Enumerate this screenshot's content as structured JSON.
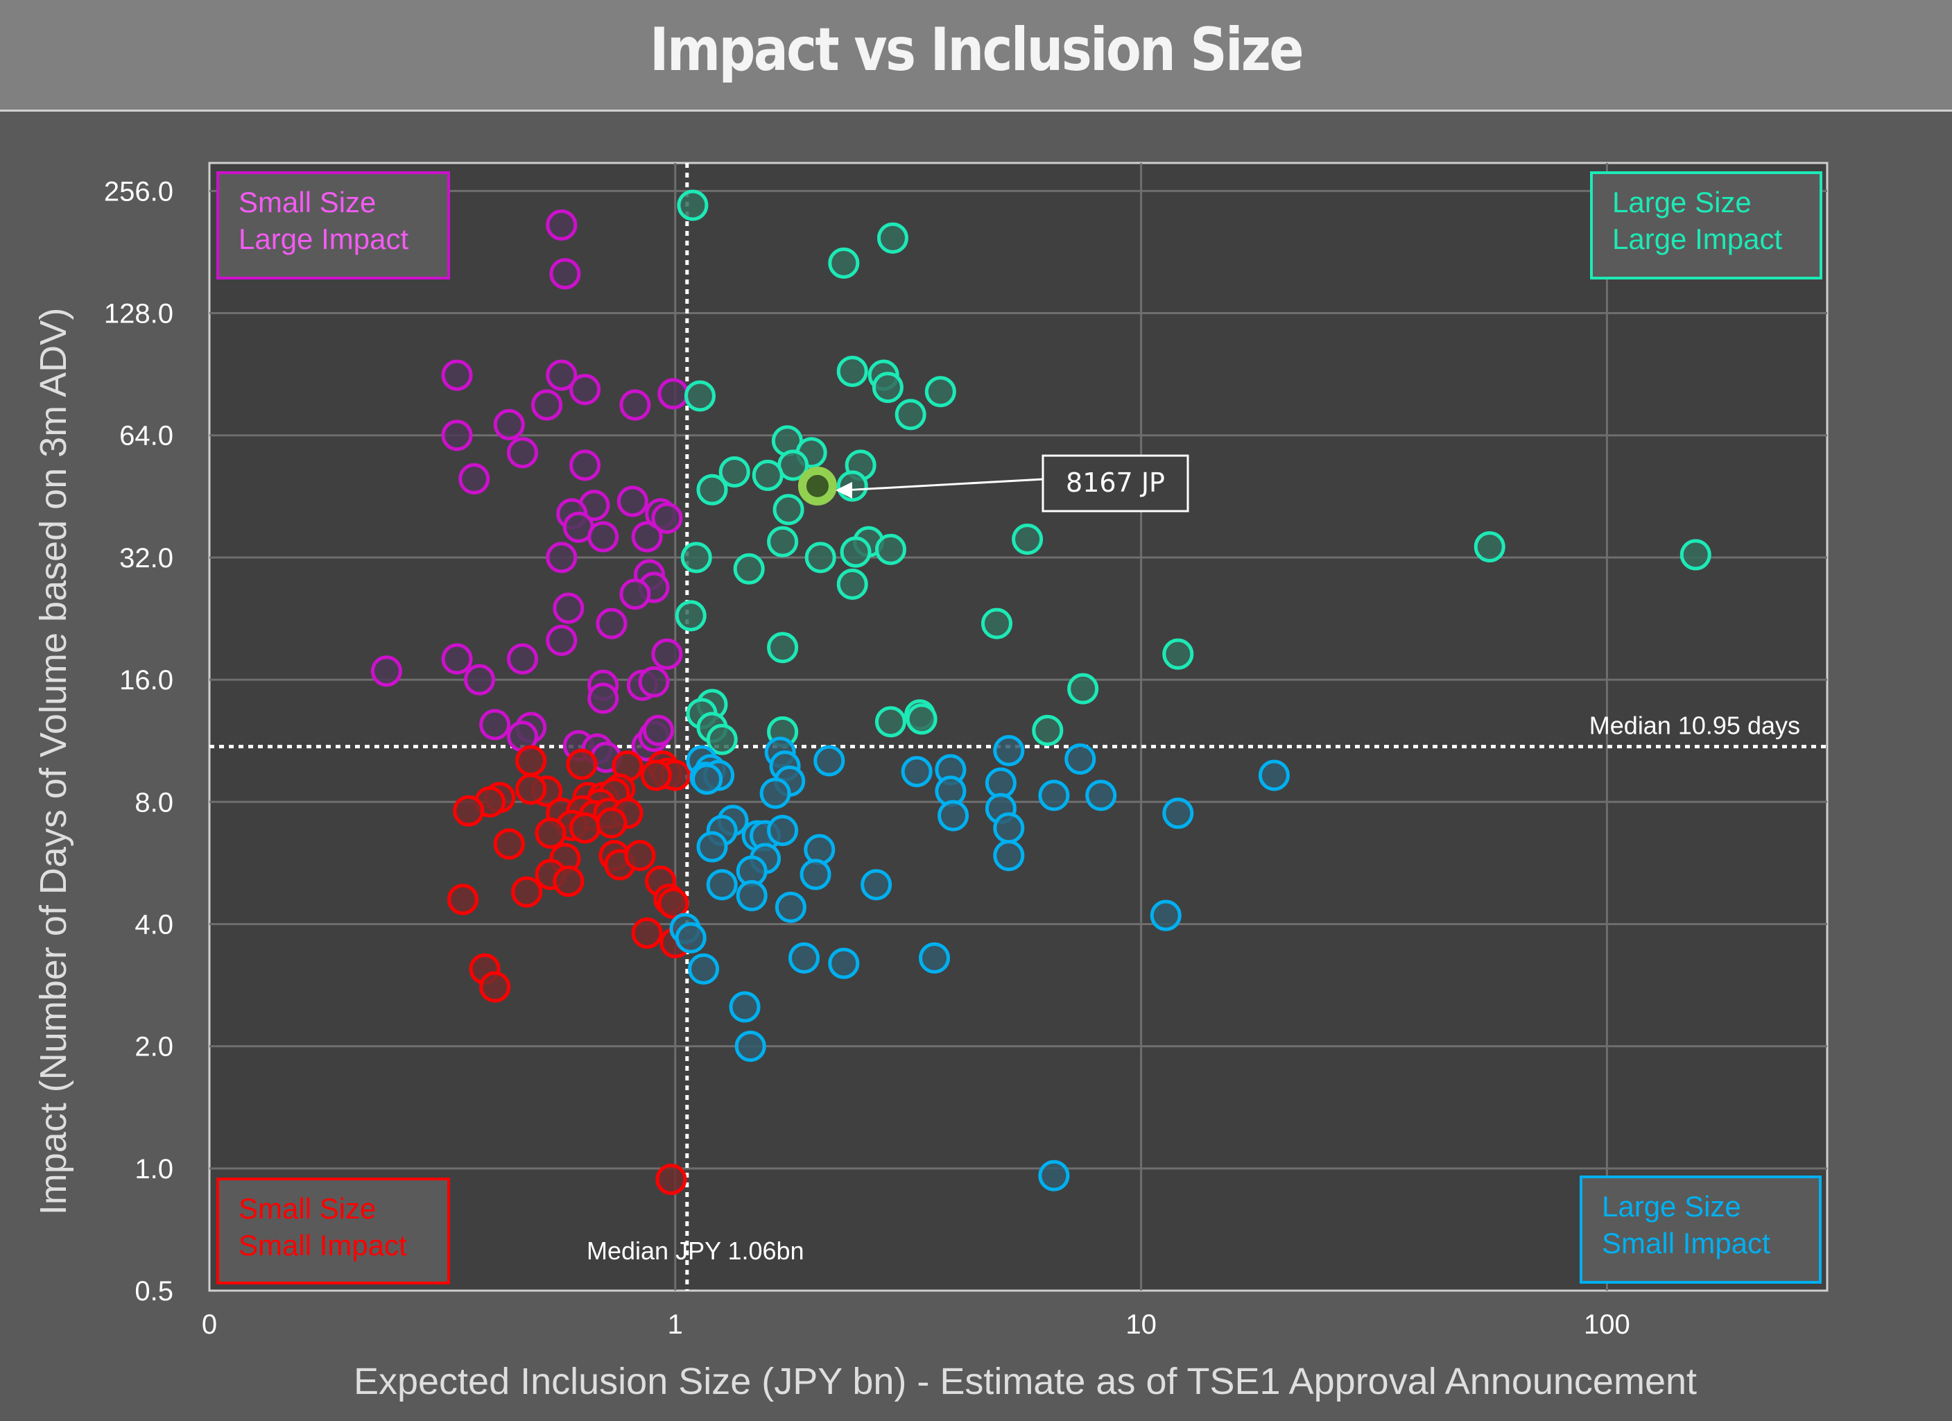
{
  "header": {
    "title": "Impact vs Inclusion Size"
  },
  "chart_data": {
    "type": "scatter",
    "title": "Impact vs Inclusion Size",
    "xlabel": "Expected Inclusion Size (JPY bn) - Estimate as of TSE1 Approval Announcement",
    "ylabel": "Impact (Number of Days of Volume based on 3m ADV)",
    "xscale": "log10",
    "yscale": "log2",
    "xlim": [
      0.1,
      297
    ],
    "ylim": [
      0.5,
      300
    ],
    "x_ticks": [
      {
        "value": 0.1,
        "label": "0"
      },
      {
        "value": 1,
        "label": "1"
      },
      {
        "value": 10,
        "label": "10"
      },
      {
        "value": 100,
        "label": "100"
      }
    ],
    "y_ticks": [
      {
        "value": 0.5,
        "label": "0.5"
      },
      {
        "value": 1,
        "label": "1.0"
      },
      {
        "value": 2,
        "label": "2.0"
      },
      {
        "value": 4,
        "label": "4.0"
      },
      {
        "value": 8,
        "label": "8.0"
      },
      {
        "value": 16,
        "label": "16.0"
      },
      {
        "value": 32,
        "label": "32.0"
      },
      {
        "value": 64,
        "label": "64.0"
      },
      {
        "value": 128,
        "label": "128.0"
      },
      {
        "value": 256,
        "label": "256.0"
      }
    ],
    "grid": true,
    "medians": {
      "x": {
        "value": 1.06,
        "label": "Median  JPY 1.06bn"
      },
      "y": {
        "value": 10.95,
        "label": "Median 10.95 days"
      }
    },
    "quadrants": [
      {
        "id": "small-large",
        "lines": [
          "Small Size",
          "Large Impact"
        ],
        "position": "top-left",
        "color": "#cc11cc",
        "text_color": "#f25cf2"
      },
      {
        "id": "large-large",
        "lines": [
          "Large Size",
          "Large Impact"
        ],
        "position": "top-right",
        "color": "#1de9b6",
        "text_color": "#1de9b6"
      },
      {
        "id": "small-small",
        "lines": [
          "Small Size",
          "Small Impact"
        ],
        "position": "bottom-left",
        "color": "#ff0000",
        "text_color": "#ff0000"
      },
      {
        "id": "large-small",
        "lines": [
          "Large Size",
          "Small Impact"
        ],
        "position": "bottom-right",
        "color": "#00b0f0",
        "text_color": "#00b0f0"
      }
    ],
    "highlight": {
      "label": "8167 JP",
      "x": 2.02,
      "y": 48,
      "color": "#92d050"
    },
    "series": [
      {
        "name": "Small Size Large Impact",
        "color": "#cc11cc",
        "fill": "#4b3a55",
        "points": [
          [
            0.57,
            211
          ],
          [
            0.58,
            160
          ],
          [
            0.34,
            90
          ],
          [
            0.57,
            90
          ],
          [
            0.64,
            83
          ],
          [
            0.53,
            76
          ],
          [
            0.82,
            76
          ],
          [
            0.99,
            81
          ],
          [
            0.34,
            64
          ],
          [
            0.44,
            68
          ],
          [
            0.37,
            50
          ],
          [
            0.47,
            58
          ],
          [
            0.64,
            54
          ],
          [
            0.81,
            44
          ],
          [
            0.67,
            43
          ],
          [
            0.6,
            41
          ],
          [
            0.62,
            38
          ],
          [
            0.7,
            36
          ],
          [
            0.87,
            36
          ],
          [
            0.93,
            41
          ],
          [
            0.96,
            40
          ],
          [
            0.57,
            32
          ],
          [
            0.59,
            24
          ],
          [
            0.88,
            29
          ],
          [
            0.9,
            27
          ],
          [
            0.82,
            26
          ],
          [
            0.73,
            22
          ],
          [
            0.57,
            20
          ],
          [
            0.96,
            18.5
          ],
          [
            0.47,
            18
          ],
          [
            0.34,
            18
          ],
          [
            0.38,
            16
          ],
          [
            0.24,
            16.8
          ],
          [
            0.7,
            15.5
          ],
          [
            0.7,
            14.4
          ],
          [
            0.85,
            15.5
          ],
          [
            0.9,
            15.8
          ],
          [
            0.41,
            12.4
          ],
          [
            0.49,
            12.2
          ],
          [
            0.47,
            11.6
          ],
          [
            0.62,
            11.0
          ],
          [
            0.68,
            10.8
          ],
          [
            0.87,
            11.0
          ],
          [
            0.71,
            10.3
          ],
          [
            0.9,
            11.6
          ],
          [
            0.92,
            12.0
          ]
        ]
      },
      {
        "name": "Large Size Large Impact",
        "color": "#1de9b6",
        "fill": "#356b5c",
        "points": [
          [
            1.09,
            236
          ],
          [
            2.93,
            196
          ],
          [
            2.3,
            170
          ],
          [
            2.4,
            92
          ],
          [
            2.8,
            90
          ],
          [
            2.86,
            84
          ],
          [
            1.13,
            80
          ],
          [
            3.71,
            82
          ],
          [
            3.2,
            72
          ],
          [
            1.74,
            62
          ],
          [
            1.96,
            58
          ],
          [
            1.79,
            54
          ],
          [
            2.5,
            54
          ],
          [
            1.34,
            52
          ],
          [
            1.58,
            51
          ],
          [
            2.4,
            48
          ],
          [
            1.2,
            47
          ],
          [
            1.75,
            42
          ],
          [
            5.7,
            35.5
          ],
          [
            1.7,
            35
          ],
          [
            2.6,
            35
          ],
          [
            2.44,
            33
          ],
          [
            2.9,
            33.5
          ],
          [
            2.05,
            32
          ],
          [
            1.11,
            32
          ],
          [
            1.44,
            30
          ],
          [
            2.4,
            27.5
          ],
          [
            1.08,
            23
          ],
          [
            4.9,
            22
          ],
          [
            1.7,
            19.2
          ],
          [
            12.0,
            18.5
          ],
          [
            7.5,
            15.2
          ],
          [
            1.2,
            13.9
          ],
          [
            1.14,
            13.2
          ],
          [
            1.2,
            12.2
          ],
          [
            1.26,
            11.4
          ],
          [
            1.7,
            11.9
          ],
          [
            2.9,
            12.6
          ],
          [
            3.35,
            13.1
          ],
          [
            3.38,
            12.8
          ],
          [
            6.3,
            12.0
          ],
          [
            56,
            34
          ],
          [
            155,
            32.5
          ]
        ]
      },
      {
        "name": "Small Size Small Impact",
        "color": "#ff0000",
        "fill": "#6f2e2e",
        "points": [
          [
            0.49,
            10.1
          ],
          [
            0.63,
            9.9
          ],
          [
            0.79,
            9.8
          ],
          [
            0.94,
            9.8
          ],
          [
            0.96,
            9.4
          ],
          [
            1.0,
            9.3
          ],
          [
            0.91,
            9.3
          ],
          [
            0.53,
            8.5
          ],
          [
            0.49,
            8.6
          ],
          [
            0.76,
            8.6
          ],
          [
            0.65,
            8.2
          ],
          [
            0.7,
            8.2
          ],
          [
            0.74,
            8.4
          ],
          [
            0.69,
            7.9
          ],
          [
            0.42,
            8.2
          ],
          [
            0.4,
            8.0
          ],
          [
            0.36,
            7.6
          ],
          [
            0.57,
            7.5
          ],
          [
            0.63,
            7.6
          ],
          [
            0.67,
            7.4
          ],
          [
            0.72,
            7.5
          ],
          [
            0.79,
            7.5
          ],
          [
            0.6,
            7.0
          ],
          [
            0.64,
            6.9
          ],
          [
            0.54,
            6.7
          ],
          [
            0.73,
            7.1
          ],
          [
            0.44,
            6.3
          ],
          [
            0.58,
            5.8
          ],
          [
            0.74,
            5.9
          ],
          [
            0.76,
            5.6
          ],
          [
            0.84,
            5.9
          ],
          [
            0.54,
            5.3
          ],
          [
            0.59,
            5.1
          ],
          [
            0.93,
            5.1
          ],
          [
            0.48,
            4.8
          ],
          [
            0.35,
            4.6
          ],
          [
            0.97,
            4.6
          ],
          [
            0.99,
            4.5
          ],
          [
            0.87,
            3.8
          ],
          [
            1.0,
            3.6
          ],
          [
            0.39,
            3.1
          ],
          [
            0.41,
            2.8
          ],
          [
            0.98,
            0.94
          ]
        ]
      },
      {
        "name": "Large Size Small Impact",
        "color": "#00b0f0",
        "fill": "#325a6c",
        "points": [
          [
            1.14,
            10.1
          ],
          [
            1.19,
            9.6
          ],
          [
            1.16,
            9.2
          ],
          [
            1.24,
            9.3
          ],
          [
            1.17,
            9.1
          ],
          [
            1.68,
            10.6
          ],
          [
            1.72,
            9.8
          ],
          [
            1.76,
            9.0
          ],
          [
            2.14,
            10.1
          ],
          [
            1.64,
            8.4
          ],
          [
            3.3,
            9.5
          ],
          [
            3.9,
            9.6
          ],
          [
            3.9,
            8.5
          ],
          [
            3.95,
            7.4
          ],
          [
            5.2,
            10.7
          ],
          [
            5.0,
            8.9
          ],
          [
            5.0,
            7.7
          ],
          [
            5.2,
            6.9
          ],
          [
            5.2,
            5.9
          ],
          [
            6.5,
            8.3
          ],
          [
            7.4,
            10.2
          ],
          [
            8.2,
            8.3
          ],
          [
            12.0,
            7.5
          ],
          [
            19.3,
            9.3
          ],
          [
            11.3,
            4.2
          ],
          [
            1.33,
            7.2
          ],
          [
            1.26,
            6.8
          ],
          [
            1.2,
            6.2
          ],
          [
            1.5,
            6.6
          ],
          [
            1.56,
            6.6
          ],
          [
            1.7,
            6.8
          ],
          [
            1.56,
            5.8
          ],
          [
            1.46,
            5.4
          ],
          [
            1.26,
            5.0
          ],
          [
            1.46,
            4.7
          ],
          [
            1.77,
            4.4
          ],
          [
            2.04,
            6.1
          ],
          [
            2.0,
            5.3
          ],
          [
            2.7,
            5.0
          ],
          [
            1.05,
            3.9
          ],
          [
            1.08,
            3.7
          ],
          [
            1.15,
            3.1
          ],
          [
            1.89,
            3.3
          ],
          [
            2.3,
            3.2
          ],
          [
            3.6,
            3.3
          ],
          [
            1.41,
            2.5
          ],
          [
            1.45,
            2.0
          ],
          [
            6.5,
            0.96
          ]
        ]
      }
    ]
  }
}
